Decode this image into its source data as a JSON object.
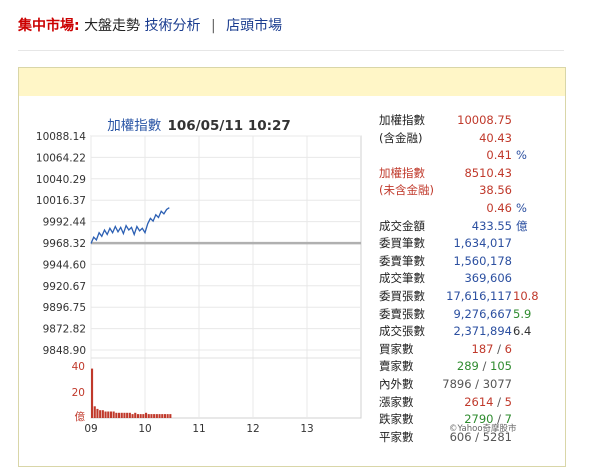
{
  "nav": {
    "title": "集中市場:",
    "item1": "大盤走勢",
    "item2": "技術分析",
    "separator": "|",
    "item3": "店頭市場"
  },
  "chart_title": {
    "index_name": "加權指數",
    "datetime": "106/05/11 10:27"
  },
  "chart_data": {
    "type": "line",
    "title": "加權指數 106/05/11 10:27",
    "x_ticks": [
      "09",
      "10",
      "11",
      "12",
      "13"
    ],
    "y_ticks": [
      "10088.14",
      "10064.22",
      "10040.29",
      "10016.37",
      "9992.44",
      "9968.32",
      "9944.60",
      "9920.67",
      "9896.75",
      "9872.82",
      "9848.90"
    ],
    "reference_level": 9968.32,
    "ylim": [
      9848.9,
      10088.14
    ],
    "series": [
      {
        "x": [
          9.0,
          9.05,
          9.1,
          9.15,
          9.2,
          9.25,
          9.3,
          9.35,
          9.4,
          9.45,
          9.5,
          9.55,
          9.6,
          9.65,
          9.7,
          9.75,
          9.8,
          9.85,
          9.9,
          9.95,
          10.0,
          10.05,
          10.1,
          10.15,
          10.2,
          10.25,
          10.3,
          10.35,
          10.4,
          10.45
        ],
        "y": [
          9968,
          9975,
          9972,
          9980,
          9976,
          9983,
          9978,
          9985,
          9980,
          9987,
          9981,
          9986,
          9979,
          9988,
          9983,
          9986,
          9978,
          9987,
          9982,
          9985,
          9980,
          9990,
          9996,
          9993,
          10000,
          9997,
          10004,
          10001,
          10006,
          10008
        ]
      }
    ],
    "volume": {
      "y_ticks": [
        "40",
        "20",
        "億"
      ],
      "values": [
        38,
        9,
        7,
        6,
        6,
        5,
        5,
        5,
        5,
        4,
        4,
        4,
        4,
        4,
        4,
        3,
        4,
        3,
        3,
        3,
        4,
        3,
        3,
        3,
        3,
        3,
        3,
        3,
        3,
        3
      ]
    }
  },
  "stats": {
    "r1_label": "加權指數",
    "r1_value": "10008.75",
    "r2_label": "(含金融)",
    "r2_value": "40.43",
    "r3_value": "0.41",
    "r3_unit": "%",
    "r4_label": "加權指數",
    "r4_value": "8510.43",
    "r5_label": "(未含金融)",
    "r5_value": "38.56",
    "r6_value": "0.46",
    "r6_unit": "%",
    "r7_label": "成交金額",
    "r7_value": "433.55",
    "r7_unit": "億",
    "r8_label": "委買筆數",
    "r8_value": "1,634,017",
    "r9_label": "委賣筆數",
    "r9_value": "1,560,178",
    "r10_label": "成交筆數",
    "r10_value": "369,606",
    "r11_label": "委買張數",
    "r11_value": "17,616,117",
    "r11_extra": "10.8",
    "r12_label": "委賣張數",
    "r12_value": "9,276,667",
    "r12_extra": "5.9",
    "r13_label": "成交張數",
    "r13_value": "2,371,894",
    "r13_extra": "6.4",
    "r14_label": "買家數",
    "r14_a": "187",
    "r14_b": "6",
    "r15_label": "賣家數",
    "r15_a": "289",
    "r15_b": "105",
    "r16_label": "內外數",
    "r16_a": "7896",
    "r16_b": "3077",
    "r17_label": "漲家數",
    "r17_a": "2614",
    "r17_b": "5",
    "r18_label": "跌家數",
    "r18_a": "2790",
    "r18_b": "7",
    "r19_label": "平家數",
    "r19_a": "606",
    "r19_b": "5281",
    "pair_sep": " / "
  },
  "credit": "©Yahoo奇摩股市",
  "colors": {
    "line": "#2b5fb3",
    "reference": "#b0b0b0",
    "volume": "#c0392b",
    "band": "#fff6c7"
  }
}
